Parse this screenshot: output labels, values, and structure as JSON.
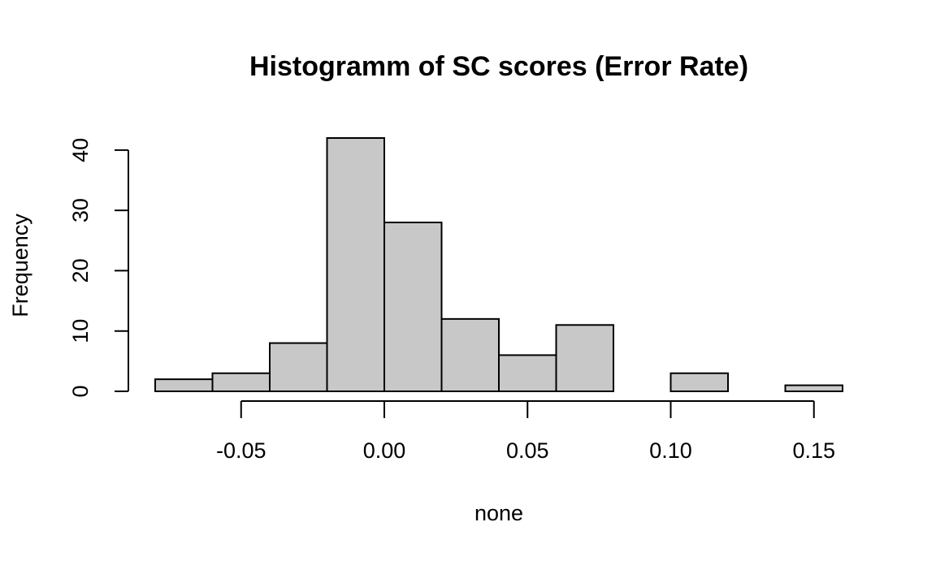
{
  "chart_data": {
    "type": "bar",
    "title": "Histogramm of SC scores (Error Rate)",
    "xlabel": "none",
    "ylabel": "Frequency",
    "bin_edges": [
      -0.08,
      -0.06,
      -0.04,
      -0.02,
      0.0,
      0.02,
      0.04,
      0.06,
      0.08,
      0.1,
      0.12,
      0.14,
      0.16
    ],
    "values": [
      2,
      3,
      8,
      42,
      28,
      12,
      6,
      11,
      0,
      3,
      0,
      1
    ],
    "xticks": [
      -0.05,
      0.0,
      0.05,
      0.1,
      0.15
    ],
    "xtick_labels": [
      "-0.05",
      "0.00",
      "0.05",
      "0.10",
      "0.15"
    ],
    "yticks": [
      0,
      10,
      20,
      30,
      40
    ],
    "ytick_labels": [
      "0",
      "10",
      "20",
      "30",
      "40"
    ],
    "xlim": [
      -0.08,
      0.16
    ],
    "ylim": [
      0,
      42
    ],
    "bar_color": "#c8c8c8",
    "edge_color": "#000000",
    "grid": false,
    "legend": "none"
  }
}
